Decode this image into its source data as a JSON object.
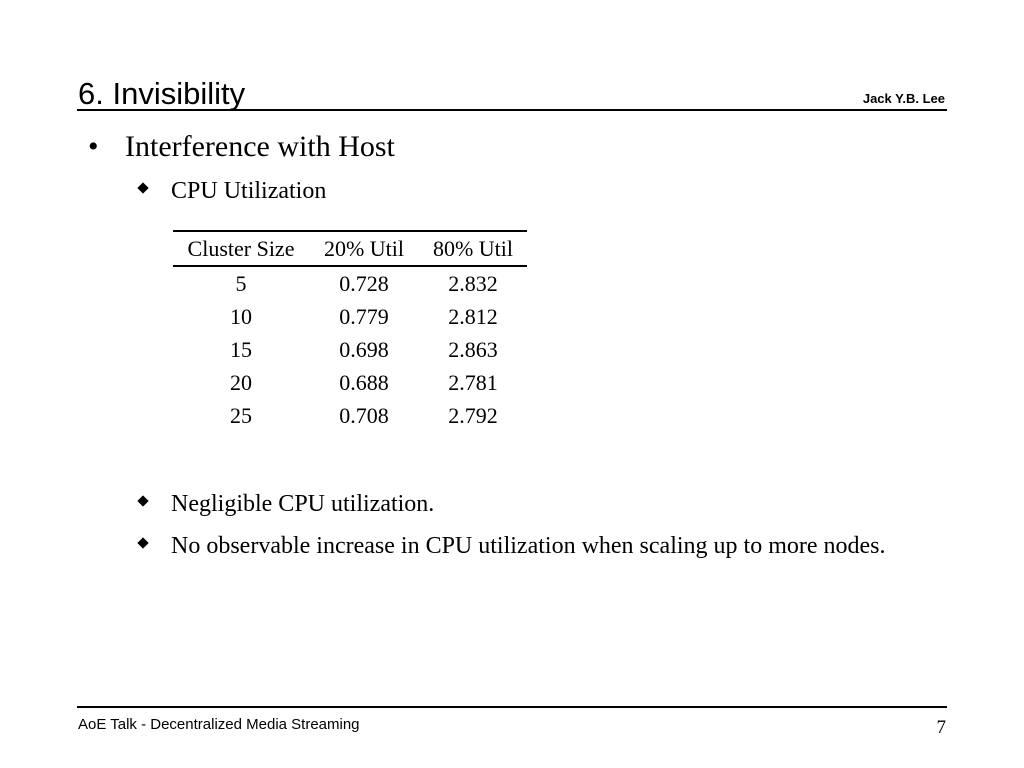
{
  "header": {
    "title": "6. Invisibility",
    "author": "Jack Y.B. Lee"
  },
  "content": {
    "bullet": "Interference with Host",
    "bullet_mark": "•",
    "sub_cpu": "CPU Utilization",
    "table": {
      "headers": [
        "Cluster Size",
        "20% Util",
        "80% Util"
      ],
      "rows": [
        [
          "5",
          "0.728",
          "2.832"
        ],
        [
          "10",
          "0.779",
          "2.812"
        ],
        [
          "15",
          "0.698",
          "2.863"
        ],
        [
          "20",
          "0.688",
          "2.781"
        ],
        [
          "25",
          "0.708",
          "2.792"
        ]
      ]
    },
    "sub_negligible": "Negligible CPU utilization.",
    "sub_no_increase": "No observable increase in CPU utilization when scaling up to more nodes."
  },
  "footer": {
    "text": "AoE Talk - Decentralized Media Streaming",
    "page_number": "7"
  }
}
